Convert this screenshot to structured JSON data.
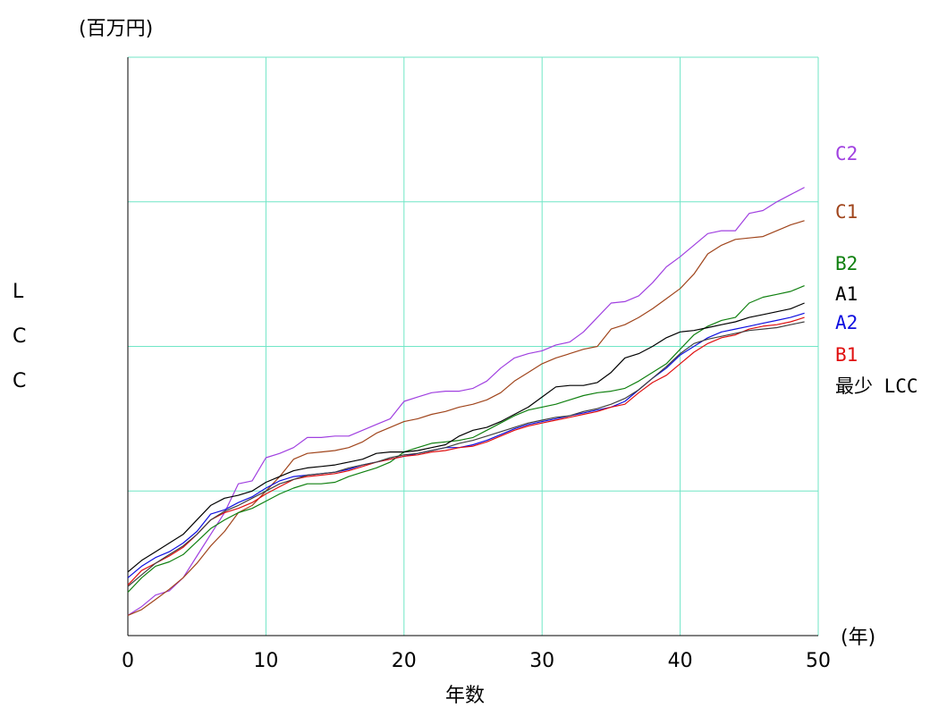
{
  "chart_data": {
    "type": "line",
    "title": "",
    "y_unit": "(百万円)",
    "x_unit": "(年)",
    "xlabel": "年数",
    "ylabel": "LCC",
    "ylabel_chars": [
      "L",
      "C",
      "C"
    ],
    "xlim": [
      0,
      50
    ],
    "ylim": [
      0,
      4
    ],
    "x_ticks": [
      0,
      10,
      20,
      30,
      40,
      50
    ],
    "y_ticks": [
      0,
      1,
      2,
      3,
      4
    ],
    "grid": true,
    "grid_color": "#70e6c6",
    "y_tick_labels_shown": false,
    "x": [
      0,
      1,
      2,
      3,
      4,
      5,
      6,
      7,
      8,
      9,
      10,
      11,
      12,
      13,
      14,
      15,
      16,
      17,
      18,
      19,
      20,
      21,
      22,
      23,
      24,
      25,
      26,
      27,
      28,
      29,
      30,
      31,
      32,
      33,
      34,
      35,
      36,
      37,
      38,
      39,
      40,
      41,
      42,
      43,
      44,
      45,
      46,
      47,
      48,
      49
    ],
    "series": [
      {
        "name": "C2",
        "color": "#a040e0",
        "label_y": 3.32,
        "values": [
          0.14,
          0.2,
          0.28,
          0.31,
          0.4,
          0.55,
          0.7,
          0.85,
          1.05,
          1.07,
          1.23,
          1.26,
          1.3,
          1.37,
          1.37,
          1.38,
          1.38,
          1.42,
          1.46,
          1.5,
          1.62,
          1.65,
          1.68,
          1.69,
          1.69,
          1.71,
          1.76,
          1.85,
          1.92,
          1.95,
          1.97,
          2.01,
          2.03,
          2.1,
          2.2,
          2.3,
          2.31,
          2.35,
          2.44,
          2.55,
          2.62,
          2.7,
          2.78,
          2.8,
          2.8,
          2.92,
          2.94,
          3.0,
          3.05,
          3.1
        ]
      },
      {
        "name": "C1",
        "color": "#a0451c",
        "label_y": 2.92,
        "values": [
          0.14,
          0.18,
          0.25,
          0.32,
          0.4,
          0.5,
          0.62,
          0.72,
          0.85,
          0.9,
          1.0,
          1.1,
          1.22,
          1.26,
          1.27,
          1.28,
          1.3,
          1.34,
          1.4,
          1.44,
          1.48,
          1.5,
          1.53,
          1.55,
          1.58,
          1.6,
          1.63,
          1.68,
          1.76,
          1.82,
          1.88,
          1.92,
          1.95,
          1.98,
          2.0,
          2.12,
          2.15,
          2.2,
          2.26,
          2.33,
          2.4,
          2.5,
          2.64,
          2.7,
          2.74,
          2.75,
          2.76,
          2.8,
          2.84,
          2.87
        ]
      },
      {
        "name": "B2",
        "color": "#108010",
        "label_y": 2.56,
        "values": [
          0.3,
          0.4,
          0.48,
          0.51,
          0.56,
          0.65,
          0.74,
          0.8,
          0.85,
          0.88,
          0.93,
          0.98,
          1.02,
          1.05,
          1.05,
          1.06,
          1.1,
          1.13,
          1.16,
          1.2,
          1.27,
          1.3,
          1.33,
          1.34,
          1.35,
          1.37,
          1.42,
          1.47,
          1.52,
          1.56,
          1.58,
          1.6,
          1.63,
          1.66,
          1.68,
          1.69,
          1.71,
          1.76,
          1.82,
          1.88,
          1.98,
          2.08,
          2.14,
          2.18,
          2.2,
          2.3,
          2.34,
          2.36,
          2.38,
          2.42
        ]
      },
      {
        "name": "A1",
        "color": "#000000",
        "label_y": 2.35,
        "values": [
          0.44,
          0.52,
          0.58,
          0.64,
          0.7,
          0.8,
          0.9,
          0.95,
          0.97,
          1.0,
          1.06,
          1.1,
          1.14,
          1.16,
          1.17,
          1.18,
          1.2,
          1.22,
          1.26,
          1.27,
          1.27,
          1.28,
          1.3,
          1.32,
          1.38,
          1.42,
          1.44,
          1.48,
          1.53,
          1.58,
          1.65,
          1.72,
          1.73,
          1.73,
          1.75,
          1.82,
          1.92,
          1.95,
          2.0,
          2.06,
          2.1,
          2.11,
          2.13,
          2.15,
          2.17,
          2.2,
          2.22,
          2.24,
          2.26,
          2.3
        ]
      },
      {
        "name": "A2",
        "color": "#1010e0",
        "label_y": 2.15,
        "values": [
          0.4,
          0.48,
          0.54,
          0.58,
          0.64,
          0.72,
          0.84,
          0.87,
          0.92,
          0.96,
          1.02,
          1.07,
          1.1,
          1.11,
          1.12,
          1.13,
          1.15,
          1.18,
          1.2,
          1.22,
          1.24,
          1.26,
          1.28,
          1.3,
          1.3,
          1.32,
          1.35,
          1.39,
          1.43,
          1.46,
          1.48,
          1.5,
          1.52,
          1.54,
          1.56,
          1.58,
          1.62,
          1.7,
          1.78,
          1.85,
          1.94,
          2.0,
          2.06,
          2.1,
          2.12,
          2.14,
          2.16,
          2.18,
          2.2,
          2.23
        ]
      },
      {
        "name": "B1",
        "color": "#e01010",
        "label_y": 1.93,
        "values": [
          0.35,
          0.45,
          0.5,
          0.55,
          0.61,
          0.7,
          0.8,
          0.85,
          0.88,
          0.92,
          0.98,
          1.03,
          1.08,
          1.1,
          1.11,
          1.12,
          1.14,
          1.17,
          1.2,
          1.22,
          1.24,
          1.25,
          1.27,
          1.28,
          1.3,
          1.31,
          1.34,
          1.38,
          1.42,
          1.45,
          1.47,
          1.49,
          1.51,
          1.53,
          1.55,
          1.58,
          1.6,
          1.68,
          1.75,
          1.8,
          1.88,
          1.96,
          2.02,
          2.06,
          2.08,
          2.12,
          2.14,
          2.15,
          2.17,
          2.2
        ]
      },
      {
        "name": "最少 LCC",
        "color": "#404040",
        "label_y": 1.74,
        "values": [
          0.34,
          0.42,
          0.5,
          0.56,
          0.62,
          0.7,
          0.8,
          0.86,
          0.9,
          0.95,
          1.0,
          1.05,
          1.08,
          1.11,
          1.12,
          1.13,
          1.16,
          1.18,
          1.2,
          1.23,
          1.25,
          1.26,
          1.28,
          1.3,
          1.33,
          1.35,
          1.38,
          1.41,
          1.44,
          1.47,
          1.49,
          1.51,
          1.52,
          1.55,
          1.57,
          1.6,
          1.64,
          1.7,
          1.78,
          1.86,
          1.95,
          2.02,
          2.05,
          2.07,
          2.09,
          2.11,
          2.12,
          2.13,
          2.15,
          2.17
        ]
      }
    ]
  }
}
